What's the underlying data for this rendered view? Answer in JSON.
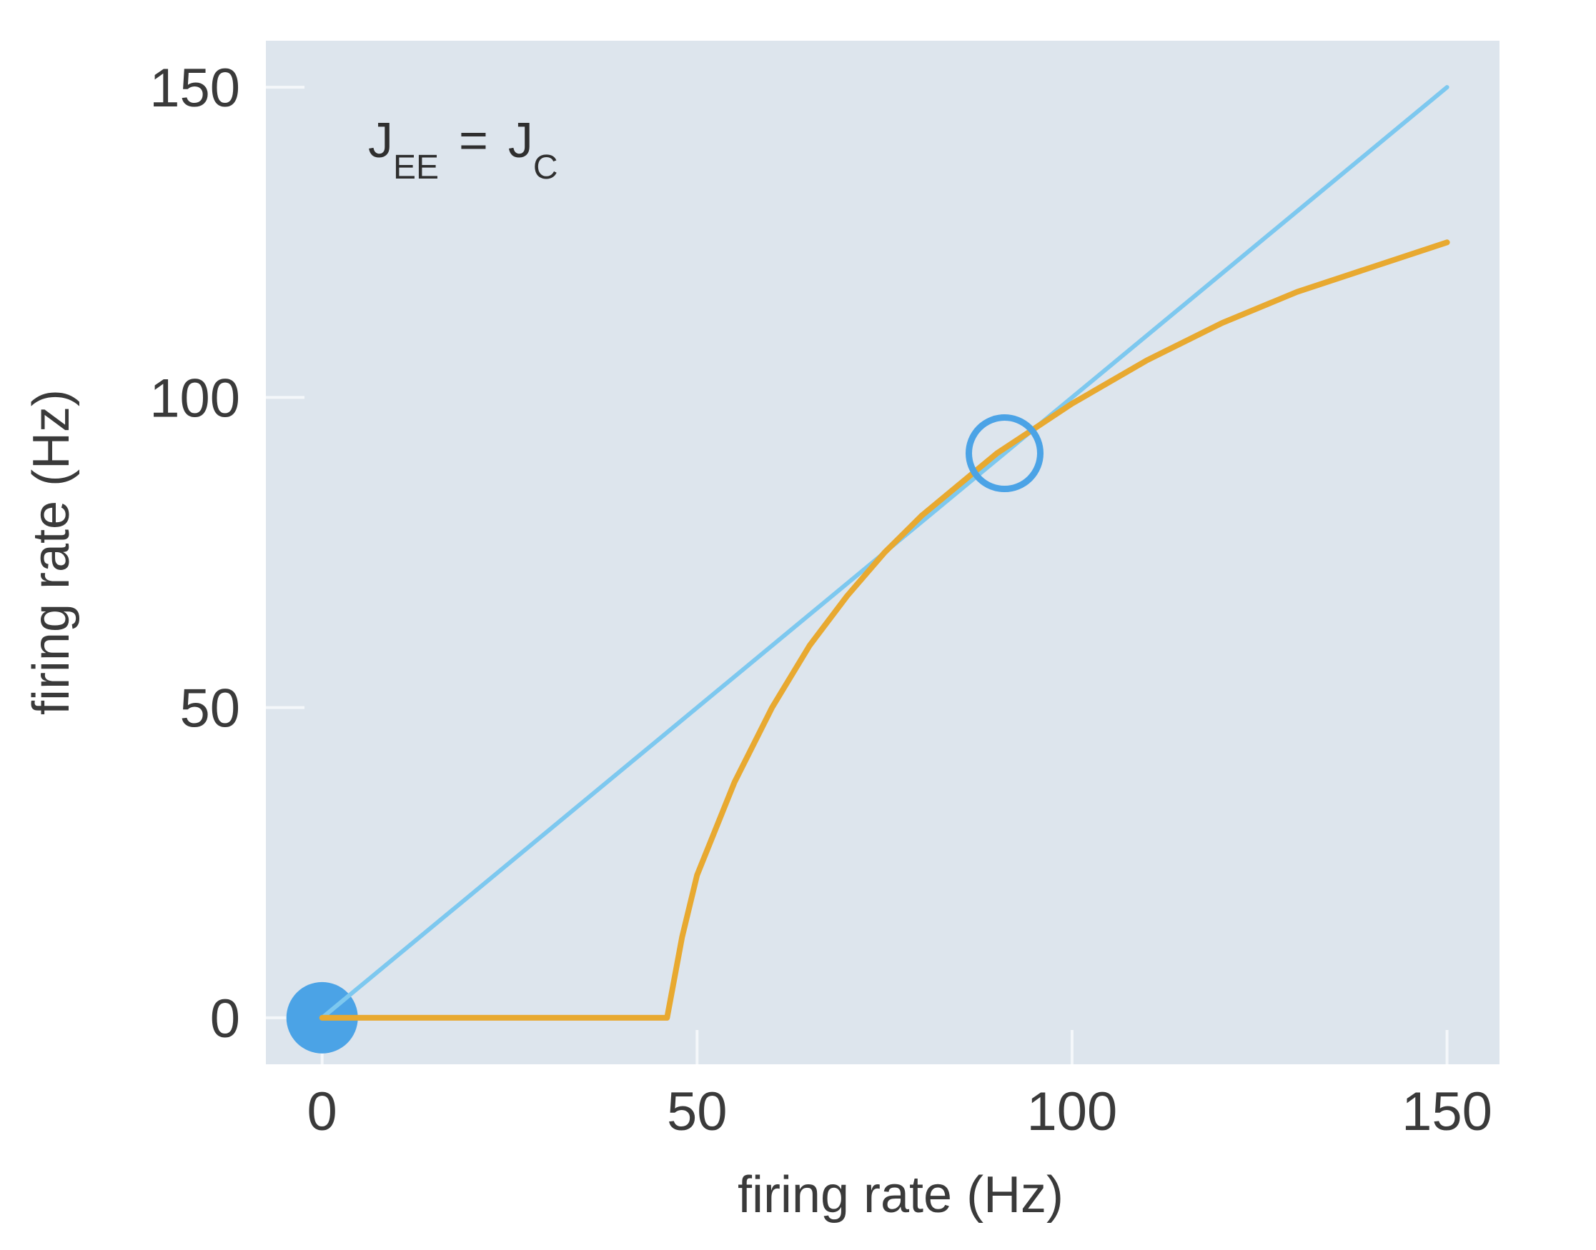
{
  "colors": {
    "plot_background": "#dde5ed",
    "gridline": "#f4f7fa",
    "identity_line": "#7dc8ef",
    "gain_curve": "#e8a930",
    "stable_fixed_point": "#4ba3e6",
    "unstable_fixed_point": "#4ba3e6"
  },
  "chart_data": {
    "type": "line",
    "xlabel": "firing rate (Hz)",
    "ylabel": "firing rate (Hz)",
    "xlim": [
      -7.5,
      157
    ],
    "ylim": [
      -7.5,
      157.5
    ],
    "xticks": [
      "0",
      "50",
      "100",
      "150"
    ],
    "yticks": [
      "0",
      "50",
      "100",
      "150"
    ],
    "grid": true,
    "annotation": {
      "J1": "J",
      "sub1": "EE",
      "eq": "=",
      "J2": "J",
      "sub2": "C"
    },
    "series": [
      {
        "id": "identity",
        "style": "line",
        "color": "#7dc8ef",
        "x": [
          0,
          150
        ],
        "y": [
          0,
          150
        ]
      },
      {
        "id": "gain",
        "style": "line",
        "color": "#e8a930",
        "x": [
          0,
          46,
          48,
          50,
          55,
          60,
          65,
          70,
          75,
          80,
          85,
          90,
          95,
          100,
          110,
          120,
          130,
          140,
          150
        ],
        "y": [
          0,
          0,
          13,
          23,
          38,
          50,
          60,
          68,
          75,
          81,
          86,
          91,
          95,
          99,
          106,
          112,
          117,
          121,
          125
        ]
      }
    ],
    "markers": [
      {
        "id": "stable-fixed-point",
        "type": "filled-circle",
        "x": 0,
        "y": 0
      },
      {
        "id": "unstable-fixed-point",
        "type": "open-circle",
        "x": 91,
        "y": 91
      }
    ]
  }
}
